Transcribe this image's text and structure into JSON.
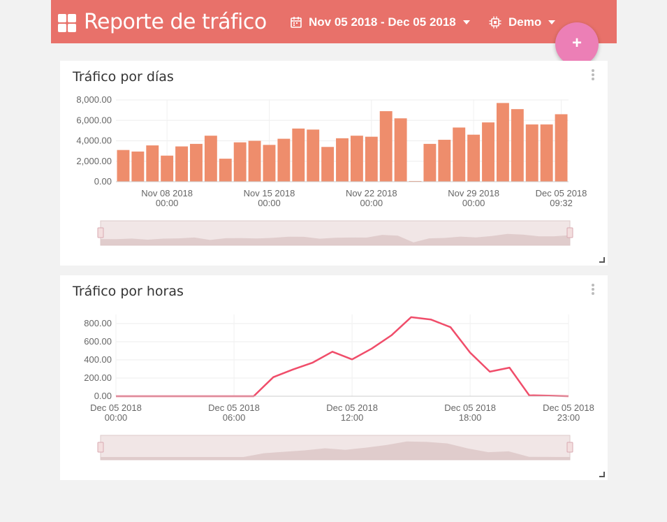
{
  "header": {
    "title": "Reporte de tráfico",
    "date_range": "Nov 05 2018 - Dec 05 2018",
    "device": "Demo",
    "fab_label": "+"
  },
  "colors": {
    "topbar": "#e8716a",
    "bar": "#ee8d6c",
    "line": "#f04d6a",
    "fab": "#ec7fb6",
    "navigator": "#e7d3d3"
  },
  "icons": {
    "app": "dashboard-grid-icon",
    "calendar": "calendar-icon",
    "device": "chip-icon",
    "more": "kebab-icon",
    "resize": "resize-handle-icon"
  },
  "cards": [
    {
      "title": "Tráfico por días"
    },
    {
      "title": "Tráfico por horas"
    }
  ],
  "chart_data": [
    {
      "type": "bar",
      "title": "Tráfico por días",
      "x": [
        "2018-11-05",
        "2018-11-06",
        "2018-11-07",
        "2018-11-08",
        "2018-11-09",
        "2018-11-10",
        "2018-11-11",
        "2018-11-12",
        "2018-11-13",
        "2018-11-14",
        "2018-11-15",
        "2018-11-16",
        "2018-11-17",
        "2018-11-18",
        "2018-11-19",
        "2018-11-20",
        "2018-11-21",
        "2018-11-22",
        "2018-11-23",
        "2018-11-24",
        "2018-11-25",
        "2018-11-26",
        "2018-11-27",
        "2018-11-28",
        "2018-11-29",
        "2018-11-30",
        "2018-12-01",
        "2018-12-02",
        "2018-12-03",
        "2018-12-04",
        "2018-12-05"
      ],
      "values": [
        3100,
        2950,
        3550,
        2550,
        3450,
        3700,
        4500,
        2250,
        3850,
        4000,
        3600,
        4200,
        5200,
        5100,
        3400,
        4250,
        4500,
        4400,
        6900,
        6200,
        50,
        3700,
        4100,
        5300,
        4600,
        5800,
        7700,
        7100,
        5600,
        5600,
        6600
      ],
      "ylim": [
        0,
        8000
      ],
      "yticks": [
        "0.00",
        "2,000.00",
        "4,000.00",
        "6,000.00",
        "8,000.00"
      ],
      "xticks": [
        {
          "label": "Nov 08 2018",
          "sub": "00:00",
          "index": 3
        },
        {
          "label": "Nov 15 2018",
          "sub": "00:00",
          "index": 10
        },
        {
          "label": "Nov 22 2018",
          "sub": "00:00",
          "index": 17
        },
        {
          "label": "Nov 29 2018",
          "sub": "00:00",
          "index": 24
        },
        {
          "label": "Dec 05 2018",
          "sub": "09:32",
          "index": 30
        }
      ],
      "grid": true,
      "navigator": true
    },
    {
      "type": "line",
      "title": "Tráfico por horas",
      "x": [
        "00:00",
        "01:00",
        "02:00",
        "03:00",
        "04:00",
        "05:00",
        "06:00",
        "07:00",
        "08:00",
        "09:00",
        "10:00",
        "11:00",
        "12:00",
        "13:00",
        "14:00",
        "15:00",
        "16:00",
        "17:00",
        "18:00",
        "19:00",
        "20:00",
        "21:00",
        "22:00",
        "23:00"
      ],
      "values": [
        0,
        0,
        0,
        0,
        0,
        0,
        0,
        0,
        210,
        295,
        370,
        490,
        405,
        525,
        670,
        870,
        845,
        760,
        480,
        270,
        315,
        10,
        5,
        0
      ],
      "ylim": [
        0,
        900
      ],
      "yticks": [
        "0.00",
        "200.00",
        "400.00",
        "600.00",
        "800.00"
      ],
      "xticks": [
        {
          "label": "Dec 05 2018",
          "sub": "00:00",
          "index": 0
        },
        {
          "label": "Dec 05 2018",
          "sub": "06:00",
          "index": 6
        },
        {
          "label": "Dec 05 2018",
          "sub": "12:00",
          "index": 12
        },
        {
          "label": "Dec 05 2018",
          "sub": "18:00",
          "index": 18
        },
        {
          "label": "Dec 05 2018",
          "sub": "23:00",
          "index": 23
        }
      ],
      "grid": true,
      "navigator": true
    }
  ]
}
